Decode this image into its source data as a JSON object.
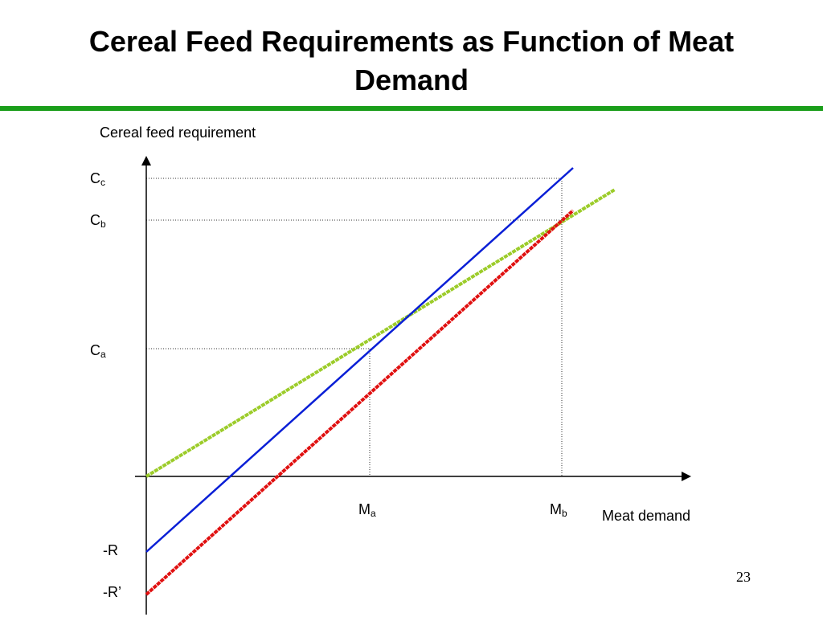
{
  "slide": {
    "title": "Cereal Feed Requirements as Function of Meat Demand",
    "page_number": "23",
    "accent_color": "#1a9e1a"
  },
  "diagram": {
    "y_axis_label": "Cereal feed requirement",
    "x_axis_label": "Meat demand",
    "y_ticks": {
      "cc": {
        "main": "C",
        "sub": "c"
      },
      "cb": {
        "main": "C",
        "sub": "b"
      },
      "ca": {
        "main": "C",
        "sub": "a"
      }
    },
    "x_ticks": {
      "ma": {
        "main": "M",
        "sub": "a"
      },
      "mb": {
        "main": "M",
        "sub": "b"
      }
    },
    "negative_labels": {
      "r": "-R",
      "r_prime": "-R’"
    },
    "line_colors": {
      "blue": "#0a1fd6",
      "red": "#e01010",
      "green": "#9ccc2a"
    }
  }
}
